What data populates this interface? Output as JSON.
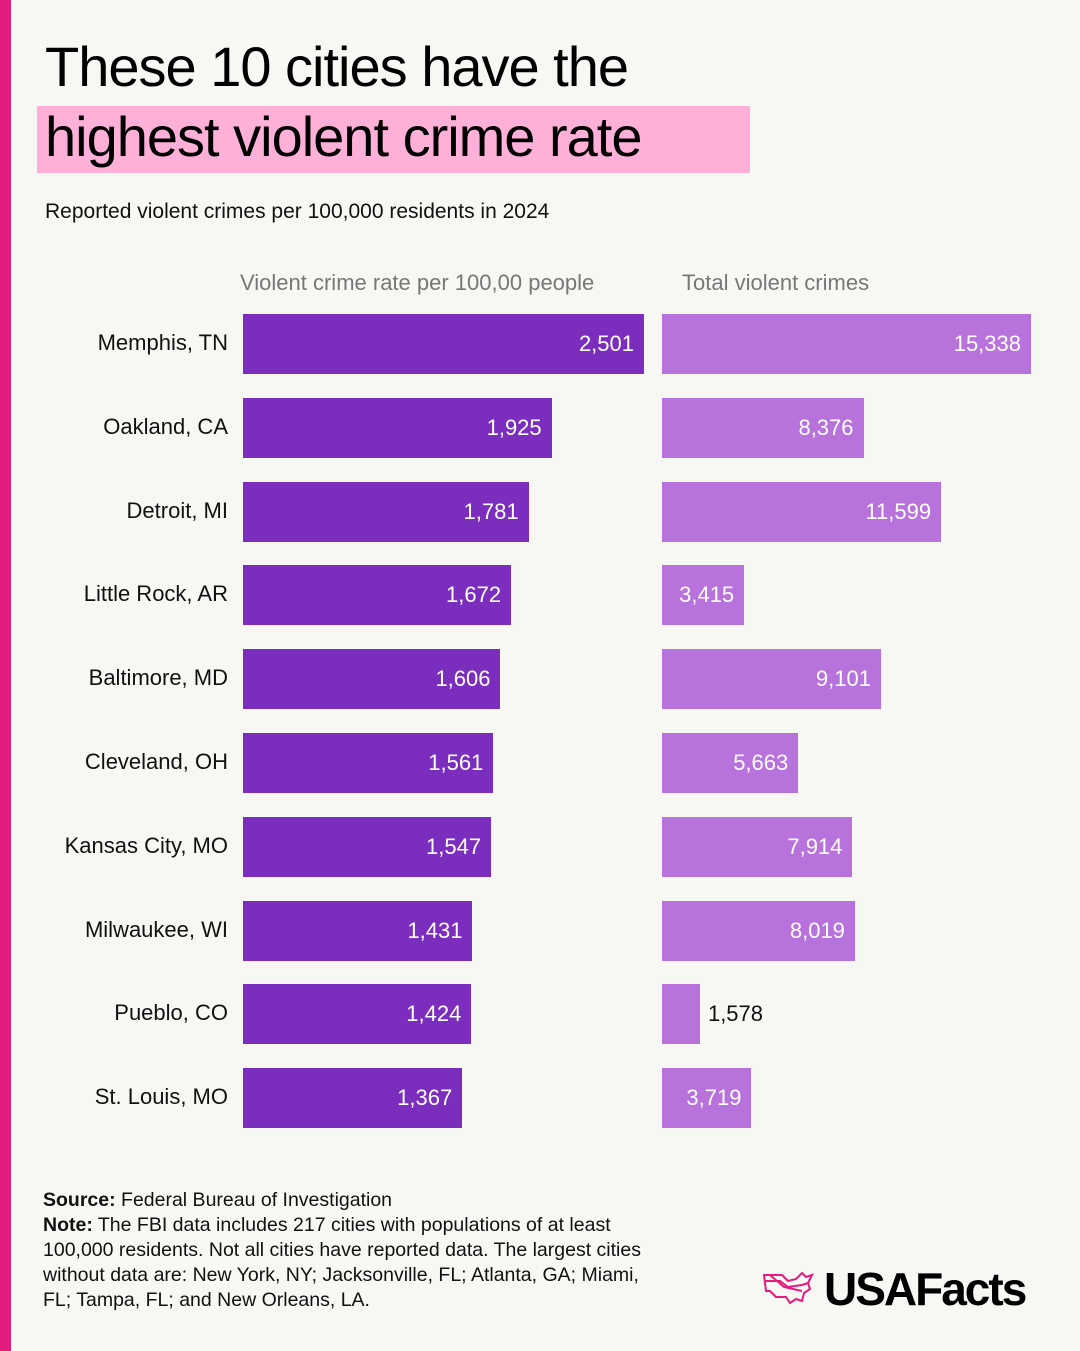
{
  "title_line1": "These 10 cities have the",
  "title_line2": "highest violent crime rate",
  "subtitle": "Reported violent crimes per 100,000 residents in 2024",
  "chart_data": {
    "type": "bar",
    "orientation": "horizontal",
    "categories": [
      "Memphis, TN",
      "Oakland, CA",
      "Detroit, MI",
      "Little Rock, AR",
      "Baltimore, MD",
      "Cleveland, OH",
      "Kansas City, MO",
      "Milwaukee, WI",
      "Pueblo, CO",
      "St. Louis, MO"
    ],
    "series": [
      {
        "name": "Violent crime rate per 100,00 people",
        "values": [
          2501,
          1925,
          1781,
          1672,
          1606,
          1561,
          1547,
          1431,
          1424,
          1367
        ],
        "labels": [
          "2,501",
          "1,925",
          "1,781",
          "1,672",
          "1,606",
          "1,561",
          "1,547",
          "1,431",
          "1,424",
          "1,367"
        ],
        "color": "#7b2dbe"
      },
      {
        "name": "Total violent crimes",
        "values": [
          15338,
          8376,
          11599,
          3415,
          9101,
          5663,
          7914,
          8019,
          1578,
          3719
        ],
        "labels": [
          "15,338",
          "8,376",
          "11,599",
          "3,415",
          "9,101",
          "5,663",
          "7,914",
          "8,019",
          "1,578",
          "3,719"
        ],
        "color": "#b872dc"
      }
    ]
  },
  "footer": {
    "source_label": "Source:",
    "source_text": " Federal Bureau of Investigation",
    "note_label": "Note:",
    "note_text": " The FBI data includes 217 cities with populations of at least 100,000 residents. Not all cities have reported data. The largest cities without data are: New York, NY; Jacksonville, FL; Atlanta, GA; Miami, FL; Tampa, FL; and New Orleans, LA."
  },
  "logo": {
    "text": "USAFacts",
    "icon": "us-map-icon",
    "color": "#e31c7e"
  },
  "colors": {
    "accent": "#e31c7e",
    "highlight": "#ffb0d8",
    "background": "#f7f7f3"
  }
}
